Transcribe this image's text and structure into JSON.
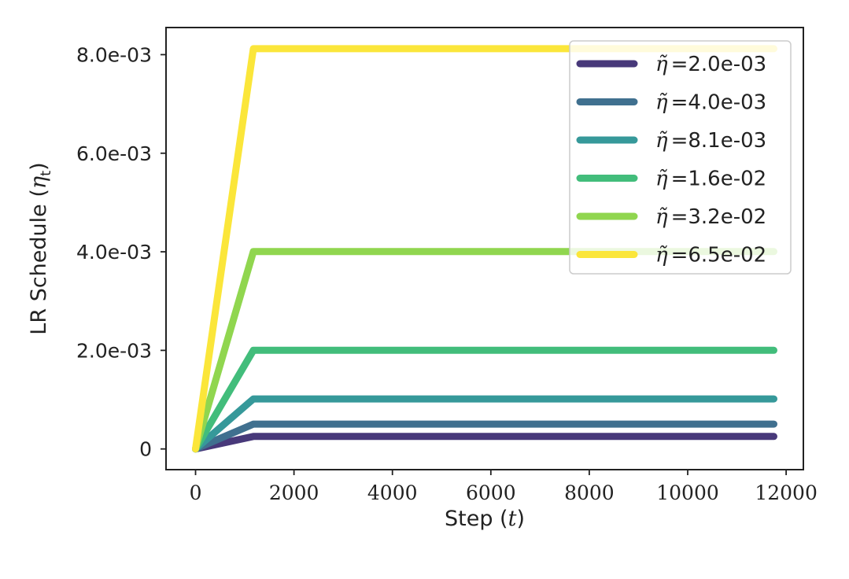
{
  "chart_data": {
    "type": "line",
    "xlabel_prefix": "Step (",
    "xlabel_var": "t",
    "xlabel_suffix": ")",
    "ylabel_prefix": "LR Schedule (",
    "ylabel_var": "η",
    "ylabel_sub": "t",
    "ylabel_suffix": ")",
    "xlim": [
      -600,
      12350
    ],
    "ylim": [
      -0.00042,
      0.00855
    ],
    "x_ticks": [
      0,
      2000,
      4000,
      6000,
      8000,
      10000,
      12000
    ],
    "x_tick_labels": [
      "0",
      "2000",
      "4000",
      "6000",
      "8000",
      "10000",
      "12000"
    ],
    "y_ticks": [
      0,
      0.002,
      0.004,
      0.006,
      0.008
    ],
    "y_tick_labels": [
      "0",
      "2.0e-03",
      "4.0e-03",
      "6.0e-03",
      "8.0e-03"
    ],
    "grid": false,
    "legend_position": "top-right",
    "legend_symbol": "η̃",
    "x": [
      0,
      1175,
      11750
    ],
    "series": [
      {
        "name": "=2.0e-03",
        "color": "#48397a",
        "values": [
          0,
          0.000254,
          0.000254
        ]
      },
      {
        "name": "=4.0e-03",
        "color": "#40708f",
        "values": [
          0,
          0.000504,
          0.000504
        ]
      },
      {
        "name": "=8.1e-03",
        "color": "#36999a",
        "values": [
          0,
          0.001015,
          0.001015
        ]
      },
      {
        "name": "=1.6e-02",
        "color": "#42bd7b",
        "values": [
          0,
          0.002002,
          0.002002
        ]
      },
      {
        "name": "=3.2e-02",
        "color": "#90d64f",
        "values": [
          0,
          0.004004,
          0.004004
        ]
      },
      {
        "name": "=6.5e-02",
        "color": "#fbe63a",
        "values": [
          0,
          0.00812,
          0.00812
        ]
      }
    ]
  }
}
